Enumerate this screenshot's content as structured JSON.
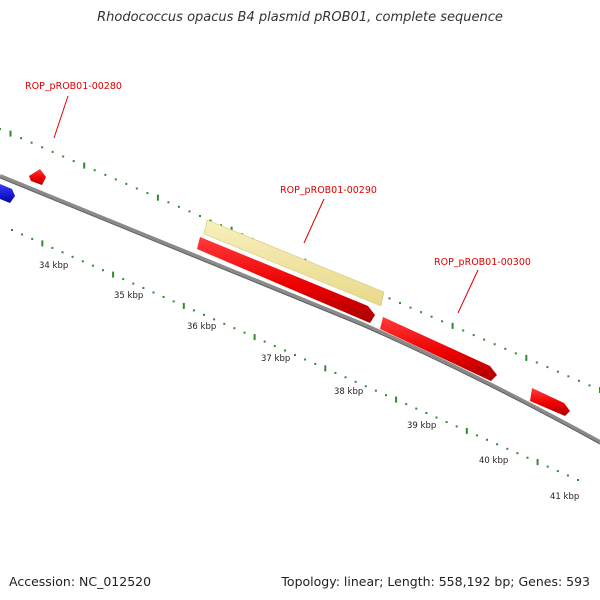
{
  "title": "Rhodococcus opacus B4 plasmid pROB01, complete sequence",
  "footer": {
    "accession": "Accession: NC_012520",
    "summary": "Topology: linear; Length: 558,192 bp; Genes: 593"
  },
  "colors": {
    "backbone": "#8a8a8a",
    "tick": "#2e8b2e",
    "gene_forward": "#ee0000",
    "gene_highlight": "#f3e7a4",
    "gene_other": "#1010ee",
    "label": "#dd0000"
  },
  "scale": {
    "unit": "kbp",
    "labels": [
      "34 kbp",
      "35 kbp",
      "36 kbp",
      "37 kbp",
      "38 kbp",
      "39 kbp",
      "40 kbp",
      "41 kbp"
    ]
  },
  "genes": [
    {
      "label": "ROP_pROB01-00280",
      "color": "red"
    },
    {
      "label": "ROP_pROB01-00290",
      "color": "yellow"
    },
    {
      "label": "ROP_pROB01-00300",
      "color": "red"
    }
  ]
}
